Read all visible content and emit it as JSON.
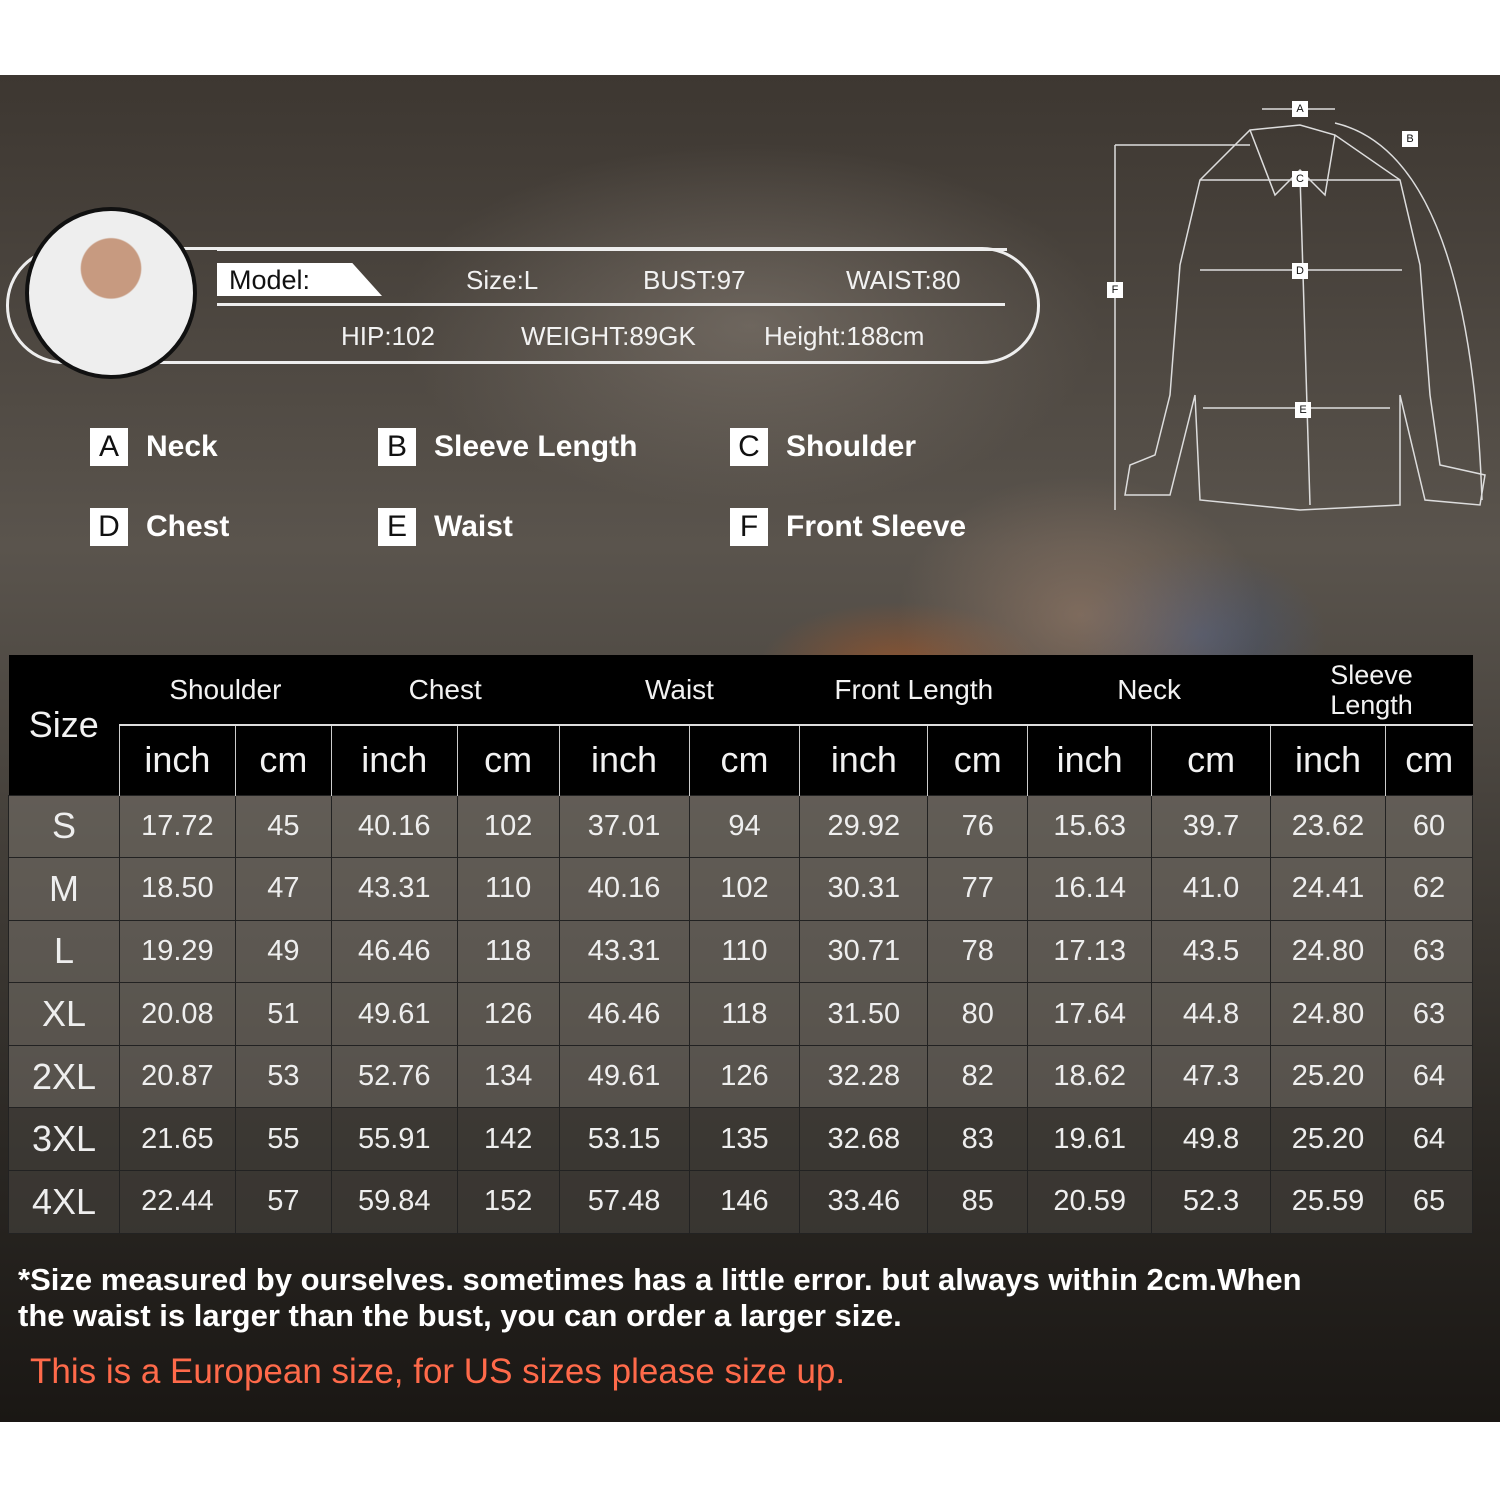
{
  "model": {
    "label": "Model:",
    "size": "Size:L",
    "bust": "BUST:97",
    "waist": "WAIST:80",
    "hip": "HIP:102",
    "weight": "WEIGHT:89GK",
    "height": "Height:188cm"
  },
  "legend": [
    {
      "key": "A",
      "label": "Neck"
    },
    {
      "key": "B",
      "label": "Sleeve Length"
    },
    {
      "key": "C",
      "label": "Shoulder"
    },
    {
      "key": "D",
      "label": "Chest"
    },
    {
      "key": "E",
      "label": "Waist"
    },
    {
      "key": "F",
      "label": "Front Sleeve"
    }
  ],
  "diagram_labels": [
    "A",
    "B",
    "C",
    "D",
    "E",
    "F"
  ],
  "table": {
    "size_header": "Size",
    "groups": [
      "Shoulder",
      "Chest",
      "Waist",
      "Front Length",
      "Neck",
      "Sleeve Length"
    ],
    "units": [
      "inch",
      "cm"
    ],
    "rows": [
      [
        "S",
        "17.72",
        "45",
        "40.16",
        "102",
        "37.01",
        "94",
        "29.92",
        "76",
        "15.63",
        "39.7",
        "23.62",
        "60"
      ],
      [
        "M",
        "18.50",
        "47",
        "43.31",
        "110",
        "40.16",
        "102",
        "30.31",
        "77",
        "16.14",
        "41.0",
        "24.41",
        "62"
      ],
      [
        "L",
        "19.29",
        "49",
        "46.46",
        "118",
        "43.31",
        "110",
        "30.71",
        "78",
        "17.13",
        "43.5",
        "24.80",
        "63"
      ],
      [
        "XL",
        "20.08",
        "51",
        "49.61",
        "126",
        "46.46",
        "118",
        "31.50",
        "80",
        "17.64",
        "44.8",
        "24.80",
        "63"
      ],
      [
        "2XL",
        "20.87",
        "53",
        "52.76",
        "134",
        "49.61",
        "126",
        "32.28",
        "82",
        "18.62",
        "47.3",
        "25.20",
        "64"
      ],
      [
        "3XL",
        "21.65",
        "55",
        "55.91",
        "142",
        "53.15",
        "135",
        "32.68",
        "83",
        "19.61",
        "49.8",
        "25.20",
        "64"
      ],
      [
        "4XL",
        "22.44",
        "57",
        "59.84",
        "152",
        "57.48",
        "146",
        "33.46",
        "85",
        "20.59",
        "52.3",
        "25.59",
        "65"
      ]
    ]
  },
  "note": "*Size measured by ourselves. sometimes has a little error. but always within 2cm.When the waist is larger than the bust, you can order a larger size.",
  "us_note": "This is a European size, for US sizes please size up.",
  "colors": {
    "us_note": "#ff6a4a"
  }
}
